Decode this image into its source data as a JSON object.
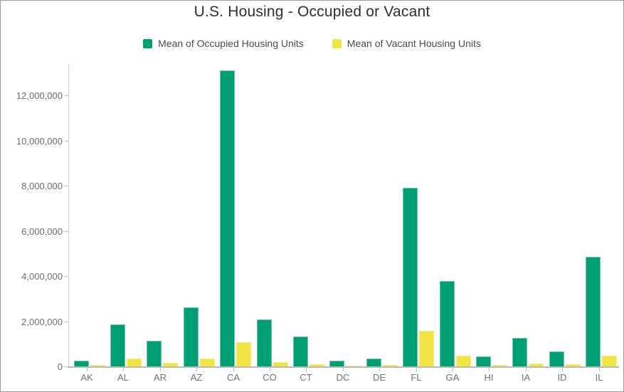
{
  "title": "U.S. Housing - Occupied or Vacant",
  "legend": {
    "items": [
      {
        "label": "Mean of Occupied Housing Units",
        "color": "#009E73"
      },
      {
        "label": "Mean of Vacant Housing Units",
        "color": "#F0E442"
      }
    ]
  },
  "colors": {
    "occupied": "#009E73",
    "occupied_border": "#6cc7a9",
    "vacant": "#F0E442",
    "vacant_border": "#f5ee85",
    "axis_line": "#cdcdcd",
    "baseline": "#b9b9b9",
    "title_text": "#2e2e2e",
    "axis_text": "#6a737b"
  },
  "chart_data": {
    "type": "bar",
    "title": "U.S. Housing - Occupied or Vacant",
    "xlabel": "",
    "ylabel": "",
    "categories": [
      "AK",
      "AL",
      "AR",
      "AZ",
      "CA",
      "CO",
      "CT",
      "DC",
      "DE",
      "FL",
      "GA",
      "HI",
      "IA",
      "ID",
      "IL"
    ],
    "series": [
      {
        "name": "Mean of Occupied Housing Units",
        "key": "occupied",
        "color": "#009E73",
        "border_color": "#6cc7a9",
        "values": [
          250000,
          1850000,
          1120000,
          2600000,
          13100000,
          2080000,
          1330000,
          240000,
          345000,
          7900000,
          3790000,
          440000,
          1260000,
          650000,
          4860000
        ]
      },
      {
        "name": "Mean of Vacant Housing Units",
        "key": "vacant",
        "color": "#F0E442",
        "border_color": "#f5ee85",
        "values": [
          65000,
          335000,
          160000,
          355000,
          1070000,
          195000,
          100000,
          45000,
          65000,
          1590000,
          460000,
          65000,
          125000,
          95000,
          465000
        ]
      }
    ],
    "ylim": [
      0,
      13350000
    ],
    "yticks": [
      0,
      2000000,
      4000000,
      6000000,
      8000000,
      10000000,
      12000000
    ],
    "ytick_labels": [
      "0",
      "2,000,000",
      "4,000,000",
      "6,000,000",
      "8,000,000",
      "10,000,000",
      "12,000,000"
    ],
    "grid": false,
    "legend_position": "top"
  }
}
